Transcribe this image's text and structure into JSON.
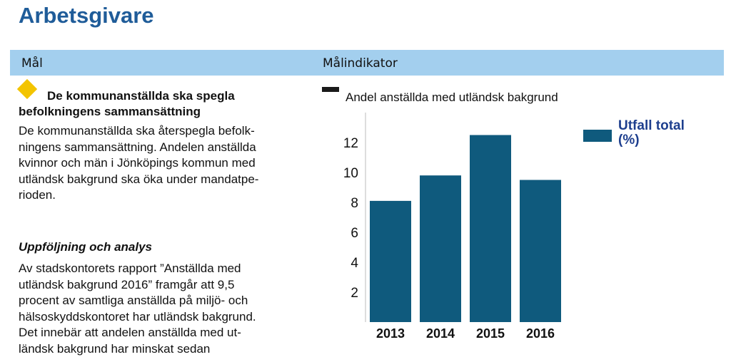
{
  "page": {
    "title": "Arbetsgivare"
  },
  "header": {
    "col1": "Mål",
    "col2": "Målindikator"
  },
  "goal": {
    "heading": "De kommunanställda ska spegla befolkningens sammansättning",
    "body_lines": [
      "De kommunanställda ska återspegla befolk-",
      "ningens sammansättning. Andelen anställda",
      "kvinnor och män i Jönköpings kommun med",
      "utländsk bakgrund ska öka under mandatpe-",
      "rioden."
    ]
  },
  "analysis": {
    "title": "Uppföljning och analys",
    "body_lines": [
      "Av stadskontorets rapport ”Anställda med",
      "utländsk bakgrund 2016” framgår att 9,5",
      "procent av samtliga anställda på miljö- och",
      "hälsoskyddskontoret har utländsk bakgrund.",
      "Det innebär att andelen anställda med ut-",
      "ländsk bakgrund har minskat sedan"
    ]
  },
  "indicator": {
    "title": "Andel anställda med utländsk bakgrund"
  },
  "colors": {
    "title": "#1f5c99",
    "header": "#a3cfee",
    "bar": "#0f5a7d",
    "diamond": "#f3c400",
    "legend_text": "#1e3f8e"
  },
  "chart_data": {
    "type": "bar",
    "title": "Andel anställda med utländsk bakgrund",
    "categories": [
      "2013",
      "2014",
      "2015",
      "2016"
    ],
    "series": [
      {
        "name": "Utfall total (%)",
        "values": [
          8.1,
          9.8,
          12.5,
          9.5
        ]
      }
    ],
    "yticks": [
      "2",
      "4",
      "6",
      "8",
      "10",
      "12"
    ],
    "ylim": [
      0,
      14
    ],
    "legend": {
      "label_line1": "Utfall total",
      "label_line2": "(%)",
      "position": "top-right"
    },
    "grid": false
  }
}
